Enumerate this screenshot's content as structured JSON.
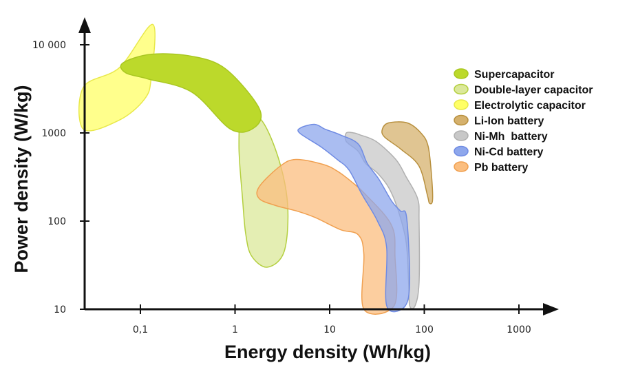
{
  "chart_data": {
    "type": "area",
    "title": "",
    "xlabel": "Energy density (Wh/kg)",
    "ylabel": "Power density (W/kg)",
    "x_scale": "log",
    "y_scale": "log",
    "xlim": [
      0.025,
      1500
    ],
    "ylim": [
      10,
      20000
    ],
    "x_ticks": [
      {
        "value": 0.1,
        "label": "0,1"
      },
      {
        "value": 1,
        "label": "1"
      },
      {
        "value": 10,
        "label": "10"
      },
      {
        "value": 100,
        "label": "100"
      },
      {
        "value": 1000,
        "label": "1000"
      }
    ],
    "y_ticks": [
      {
        "value": 10,
        "label": "10"
      },
      {
        "value": 100,
        "label": "100"
      },
      {
        "value": 1000,
        "label": "1000"
      },
      {
        "value": 10000,
        "label": "10 000"
      }
    ],
    "grid": false,
    "legend_position": "right",
    "series": [
      {
        "name": "Electrolytic capacitor",
        "color": "#ffff66",
        "edge": "#e8e84a",
        "outline": [
          [
            0.025,
            1100
          ],
          [
            0.06,
            1400
          ],
          [
            0.11,
            2400
          ],
          [
            0.13,
            4200
          ],
          [
            0.135,
            17000
          ],
          [
            0.06,
            5500
          ],
          [
            0.025,
            3300
          ]
        ]
      },
      {
        "name": "Double-layer capacitor",
        "color": "#dbe89a",
        "edge": "#b4cf3f",
        "outline": [
          [
            1.2,
            1600
          ],
          [
            1.9,
            1400
          ],
          [
            2.9,
            500
          ],
          [
            3.6,
            150
          ],
          [
            3.3,
            45
          ],
          [
            2.2,
            30
          ],
          [
            1.5,
            40
          ],
          [
            1.3,
            70
          ],
          [
            1.2,
            180
          ],
          [
            1.1,
            700
          ]
        ]
      },
      {
        "name": "Supercapacitor",
        "color": "#bcd92b",
        "edge": "#a9c721",
        "outline": [
          [
            0.065,
            6200
          ],
          [
            0.13,
            7800
          ],
          [
            0.35,
            7400
          ],
          [
            0.8,
            5300
          ],
          [
            1.8,
            1900
          ],
          [
            1.6,
            1150
          ],
          [
            0.9,
            1100
          ],
          [
            0.35,
            2900
          ],
          [
            0.12,
            4100
          ],
          [
            0.07,
            4800
          ]
        ]
      },
      {
        "name": "Pb battery",
        "color": "#fbbe7f",
        "edge": "#f0a050",
        "outline": [
          [
            1.8,
            245
          ],
          [
            3,
            420
          ],
          [
            4.4,
            500
          ],
          [
            8.5,
            440
          ],
          [
            12,
            370
          ],
          [
            17,
            280
          ],
          [
            24,
            200
          ],
          [
            45,
            90
          ],
          [
            49,
            40
          ],
          [
            48,
            11
          ],
          [
            23,
            10
          ],
          [
            23,
            42
          ],
          [
            20,
            70
          ],
          [
            13,
            80
          ],
          [
            7,
            110
          ],
          [
            4.5,
            130
          ],
          [
            2.7,
            150
          ],
          [
            1.8,
            180
          ]
        ]
      },
      {
        "name": "Li-Ion battery",
        "color": "#d5b16d",
        "edge": "#b8903e",
        "outline": [
          [
            36,
            1100
          ],
          [
            42,
            1300
          ],
          [
            66,
            1300
          ],
          [
            92,
            1000
          ],
          [
            110,
            700
          ],
          [
            120,
            300
          ],
          [
            122,
            170
          ],
          [
            113,
            160
          ],
          [
            108,
            195
          ],
          [
            88,
            420
          ],
          [
            57,
            650
          ],
          [
            38,
            900
          ]
        ]
      },
      {
        "name": "Ni-Mh  battery",
        "color": "#c8c8c8",
        "edge": "#b0b0b0",
        "outline": [
          [
            15,
            1000
          ],
          [
            18,
            1000
          ],
          [
            21,
            950
          ],
          [
            31,
            800
          ],
          [
            50,
            500
          ],
          [
            64,
            320
          ],
          [
            85,
            180
          ],
          [
            88,
            100
          ],
          [
            88,
            20
          ],
          [
            80,
            11
          ],
          [
            70,
            11
          ],
          [
            68,
            22
          ],
          [
            64,
            60
          ],
          [
            52,
            140
          ],
          [
            42,
            240
          ],
          [
            32,
            350
          ],
          [
            24,
            450
          ],
          [
            20,
            620
          ],
          [
            15,
            800
          ]
        ]
      },
      {
        "name": "Ni-Cd battery",
        "color": "#8ea7ec",
        "edge": "#6f8be3",
        "outline": [
          [
            5,
            1150
          ],
          [
            7,
            1250
          ],
          [
            9,
            1100
          ],
          [
            13,
            950
          ],
          [
            20,
            750
          ],
          [
            25,
            450
          ],
          [
            33,
            300
          ],
          [
            45,
            170
          ],
          [
            56,
            130
          ],
          [
            65,
            110
          ],
          [
            70,
            20
          ],
          [
            61,
            10.5
          ],
          [
            40,
            11
          ],
          [
            40,
            50
          ],
          [
            32,
            100
          ],
          [
            22,
            200
          ],
          [
            16,
            380
          ],
          [
            12,
            500
          ],
          [
            8,
            700
          ],
          [
            4.8,
            1000
          ]
        ]
      }
    ],
    "legend_order": [
      "Supercapacitor",
      "Double-layer capacitor",
      "Electrolytic capacitor",
      "Li-Ion battery",
      "Ni-Mh  battery",
      "Ni-Cd battery",
      "Pb battery"
    ]
  }
}
